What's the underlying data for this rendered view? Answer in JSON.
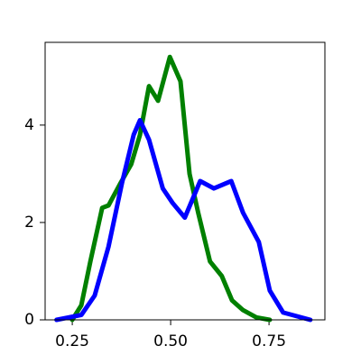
{
  "chart_data": {
    "type": "line",
    "xlim": [
      0.181,
      0.892
    ],
    "ylim": [
      0,
      5.7
    ],
    "xticks": [
      0.25,
      {
        "value": 0.5,
        "label": "0.50"
      },
      0.75
    ],
    "yticks": [
      0,
      2,
      4
    ],
    "series": [
      {
        "color": "#008000",
        "x": [
          0.25,
          0.273,
          0.296,
          0.326,
          0.342,
          0.372,
          0.4,
          0.422,
          0.445,
          0.468,
          0.498,
          0.525,
          0.548,
          0.57,
          0.6,
          0.63,
          0.656,
          0.684,
          0.718,
          0.752
        ],
        "values": [
          0,
          0.3,
          1.2,
          2.3,
          2.35,
          2.8,
          3.2,
          3.8,
          4.8,
          4.5,
          5.4,
          4.9,
          3.0,
          2.2,
          1.2,
          0.9,
          0.4,
          0.2,
          0.05,
          0
        ]
      },
      {
        "color": "#0000ff",
        "x": [
          0.21,
          0.273,
          0.307,
          0.342,
          0.376,
          0.406,
          0.422,
          0.445,
          0.48,
          0.505,
          0.536,
          0.575,
          0.61,
          0.654,
          0.684,
          0.724,
          0.752,
          0.786,
          0.855
        ],
        "values": [
          0,
          0.1,
          0.5,
          1.5,
          2.8,
          3.8,
          4.1,
          3.7,
          2.7,
          2.4,
          2.1,
          2.85,
          2.7,
          2.85,
          2.2,
          1.6,
          0.6,
          0.15,
          0
        ]
      }
    ]
  }
}
